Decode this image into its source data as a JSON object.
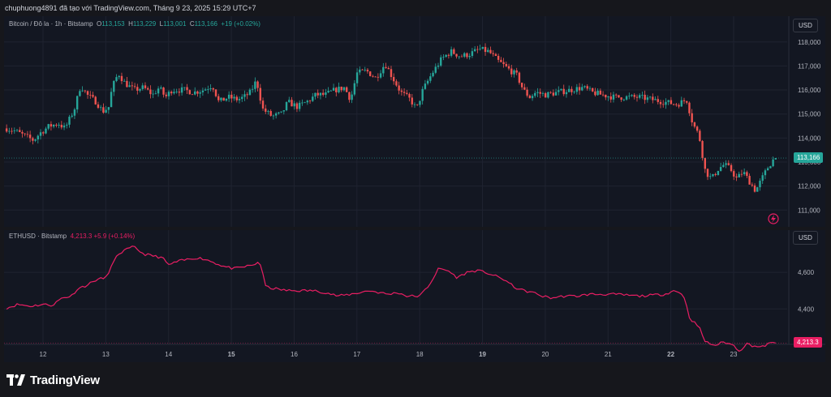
{
  "header": {
    "text": "chuphuong4891 đã tạo với TradingView.com, Tháng 9 23, 2025 15:29 UTC+7"
  },
  "pane1": {
    "legend_symbol": "Bitcoin / Đô la · 1h · Bitstamp",
    "legend_o_label": "O",
    "legend_o": "113,153",
    "legend_h_label": "H",
    "legend_h": "113,229",
    "legend_l_label": "L",
    "legend_l": "113,001",
    "legend_c_label": "C",
    "legend_c": "113,166",
    "legend_change": "+19 (+0.02%)",
    "currency": "USD",
    "last_price_label": "113,166"
  },
  "pane2": {
    "legend_symbol": "ETHUSD · Bitstamp",
    "legend_value": "4,213.3 +5.9 (+0.14%)",
    "currency": "USD",
    "last_price_label": "4,213.3"
  },
  "footer": {
    "brand": "TradingView"
  },
  "colors": {
    "up": "#26a69a",
    "down": "#ef5350",
    "eth_line": "#e91e63",
    "grid": "#1f2330",
    "bg": "#131722"
  },
  "chart_data": [
    {
      "type": "candlestick",
      "title": "Bitcoin / Đô la · 1h · Bitstamp",
      "y_ticks": [
        111000,
        112000,
        113000,
        114000,
        115000,
        116000,
        117000,
        118000
      ],
      "y_tick_labels": [
        "111,000",
        "112,000",
        "113,000",
        "114,000",
        "115,000",
        "116,000",
        "117,000",
        "118,000"
      ],
      "ylim": [
        110300,
        118600
      ],
      "x_range_days": [
        11.4,
        23.75
      ],
      "last": 113166,
      "close_path": [
        [
          11.42,
          114400
        ],
        [
          11.55,
          114300
        ],
        [
          11.7,
          114100
        ],
        [
          11.85,
          113900
        ],
        [
          11.95,
          114200
        ],
        [
          12.1,
          114500
        ],
        [
          12.25,
          114600
        ],
        [
          12.35,
          114400
        ],
        [
          12.5,
          115200
        ],
        [
          12.6,
          116200
        ],
        [
          12.7,
          115800
        ],
        [
          12.85,
          115500
        ],
        [
          12.95,
          115100
        ],
        [
          13.05,
          115300
        ],
        [
          13.1,
          116100
        ],
        [
          13.2,
          116700
        ],
        [
          13.3,
          116300
        ],
        [
          13.45,
          116000
        ],
        [
          13.6,
          116100
        ],
        [
          13.75,
          115800
        ],
        [
          13.85,
          116100
        ],
        [
          13.95,
          115700
        ],
        [
          14.05,
          116000
        ],
        [
          14.25,
          116000
        ],
        [
          14.4,
          115900
        ],
        [
          14.55,
          116000
        ],
        [
          14.7,
          116200
        ],
        [
          14.8,
          115500
        ],
        [
          14.95,
          115700
        ],
        [
          15.1,
          115600
        ],
        [
          15.2,
          115700
        ],
        [
          15.3,
          115900
        ],
        [
          15.4,
          116400
        ],
        [
          15.5,
          115200
        ],
        [
          15.65,
          114900
        ],
        [
          15.8,
          115000
        ],
        [
          15.9,
          115500
        ],
        [
          16.05,
          115300
        ],
        [
          16.2,
          115500
        ],
        [
          16.35,
          115800
        ],
        [
          16.5,
          115800
        ],
        [
          16.65,
          116000
        ],
        [
          16.8,
          116100
        ],
        [
          16.9,
          115600
        ],
        [
          17.0,
          116700
        ],
        [
          17.15,
          116800
        ],
        [
          17.3,
          116500
        ],
        [
          17.45,
          117100
        ],
        [
          17.55,
          116600
        ],
        [
          17.7,
          115900
        ],
        [
          17.85,
          115600
        ],
        [
          17.95,
          115200
        ],
        [
          18.05,
          116000
        ],
        [
          18.2,
          116700
        ],
        [
          18.35,
          117300
        ],
        [
          18.5,
          117600
        ],
        [
          18.65,
          117400
        ],
        [
          18.8,
          117500
        ],
        [
          18.95,
          117700
        ],
        [
          19.1,
          117600
        ],
        [
          19.25,
          117200
        ],
        [
          19.35,
          117000
        ],
        [
          19.45,
          116800
        ],
        [
          19.55,
          116600
        ],
        [
          19.65,
          116000
        ],
        [
          19.75,
          115700
        ],
        [
          19.85,
          115900
        ],
        [
          20.0,
          115800
        ],
        [
          20.2,
          115900
        ],
        [
          20.4,
          116000
        ],
        [
          20.6,
          116100
        ],
        [
          20.75,
          115900
        ],
        [
          20.9,
          115800
        ],
        [
          21.1,
          115700
        ],
        [
          21.3,
          115700
        ],
        [
          21.5,
          115700
        ],
        [
          21.7,
          115600
        ],
        [
          21.9,
          115500
        ],
        [
          22.1,
          115400
        ],
        [
          22.25,
          115600
        ],
        [
          22.35,
          114600
        ],
        [
          22.45,
          114100
        ],
        [
          22.55,
          112600
        ],
        [
          22.65,
          112300
        ],
        [
          22.75,
          112700
        ],
        [
          22.85,
          112900
        ],
        [
          22.95,
          112700
        ],
        [
          23.05,
          112300
        ],
        [
          23.15,
          112600
        ],
        [
          23.25,
          112200
        ],
        [
          23.35,
          111800
        ],
        [
          23.45,
          112300
        ],
        [
          23.55,
          112800
        ],
        [
          23.65,
          113166
        ]
      ]
    },
    {
      "type": "line",
      "title": "ETHUSD · Bitstamp",
      "y_ticks": [
        4400,
        4600
      ],
      "y_tick_labels": [
        "4,400",
        "4,600"
      ],
      "ylim": [
        4140,
        4760
      ],
      "x_range_days": [
        11.4,
        23.75
      ],
      "last": 4213.3,
      "points": [
        [
          11.42,
          4405
        ],
        [
          11.6,
          4425
        ],
        [
          11.8,
          4415
        ],
        [
          12.0,
          4425
        ],
        [
          12.15,
          4420
        ],
        [
          12.3,
          4460
        ],
        [
          12.45,
          4470
        ],
        [
          12.55,
          4510
        ],
        [
          12.7,
          4530
        ],
        [
          12.85,
          4560
        ],
        [
          13.0,
          4570
        ],
        [
          13.1,
          4640
        ],
        [
          13.2,
          4700
        ],
        [
          13.3,
          4720
        ],
        [
          13.45,
          4740
        ],
        [
          13.6,
          4700
        ],
        [
          13.75,
          4690
        ],
        [
          13.9,
          4680
        ],
        [
          14.0,
          4640
        ],
        [
          14.15,
          4660
        ],
        [
          14.3,
          4670
        ],
        [
          14.45,
          4680
        ],
        [
          14.6,
          4670
        ],
        [
          14.75,
          4650
        ],
        [
          14.9,
          4630
        ],
        [
          15.05,
          4620
        ],
        [
          15.2,
          4630
        ],
        [
          15.35,
          4640
        ],
        [
          15.45,
          4660
        ],
        [
          15.55,
          4520
        ],
        [
          15.7,
          4510
        ],
        [
          15.9,
          4500
        ],
        [
          16.1,
          4500
        ],
        [
          16.3,
          4500
        ],
        [
          16.5,
          4490
        ],
        [
          16.7,
          4470
        ],
        [
          16.9,
          4480
        ],
        [
          17.05,
          4490
        ],
        [
          17.2,
          4500
        ],
        [
          17.35,
          4490
        ],
        [
          17.5,
          4480
        ],
        [
          17.65,
          4490
        ],
        [
          17.8,
          4470
        ],
        [
          18.0,
          4470
        ],
        [
          18.15,
          4530
        ],
        [
          18.3,
          4620
        ],
        [
          18.45,
          4610
        ],
        [
          18.6,
          4570
        ],
        [
          18.75,
          4600
        ],
        [
          18.9,
          4610
        ],
        [
          19.05,
          4600
        ],
        [
          19.2,
          4580
        ],
        [
          19.35,
          4560
        ],
        [
          19.5,
          4520
        ],
        [
          19.65,
          4500
        ],
        [
          19.8,
          4490
        ],
        [
          19.95,
          4470
        ],
        [
          20.1,
          4460
        ],
        [
          20.3,
          4470
        ],
        [
          20.5,
          4470
        ],
        [
          20.7,
          4480
        ],
        [
          20.9,
          4480
        ],
        [
          21.1,
          4480
        ],
        [
          21.3,
          4475
        ],
        [
          21.5,
          4470
        ],
        [
          21.7,
          4475
        ],
        [
          21.9,
          4480
        ],
        [
          22.05,
          4500
        ],
        [
          22.2,
          4480
        ],
        [
          22.3,
          4350
        ],
        [
          22.45,
          4300
        ],
        [
          22.55,
          4220
        ],
        [
          22.7,
          4200
        ],
        [
          22.85,
          4220
        ],
        [
          23.0,
          4200
        ],
        [
          23.1,
          4170
        ],
        [
          23.2,
          4210
        ],
        [
          23.3,
          4200
        ],
        [
          23.45,
          4190
        ],
        [
          23.55,
          4210
        ],
        [
          23.65,
          4213.3
        ]
      ]
    }
  ],
  "x_axis": {
    "labels": [
      {
        "day": 12,
        "text": "12",
        "bold": false
      },
      {
        "day": 13,
        "text": "13",
        "bold": false
      },
      {
        "day": 14,
        "text": "14",
        "bold": false
      },
      {
        "day": 15,
        "text": "15",
        "bold": true
      },
      {
        "day": 16,
        "text": "16",
        "bold": false
      },
      {
        "day": 17,
        "text": "17",
        "bold": false
      },
      {
        "day": 18,
        "text": "18",
        "bold": false
      },
      {
        "day": 19,
        "text": "19",
        "bold": true
      },
      {
        "day": 20,
        "text": "20",
        "bold": false
      },
      {
        "day": 21,
        "text": "21",
        "bold": false
      },
      {
        "day": 22,
        "text": "22",
        "bold": true
      },
      {
        "day": 23,
        "text": "23",
        "bold": false
      }
    ]
  }
}
